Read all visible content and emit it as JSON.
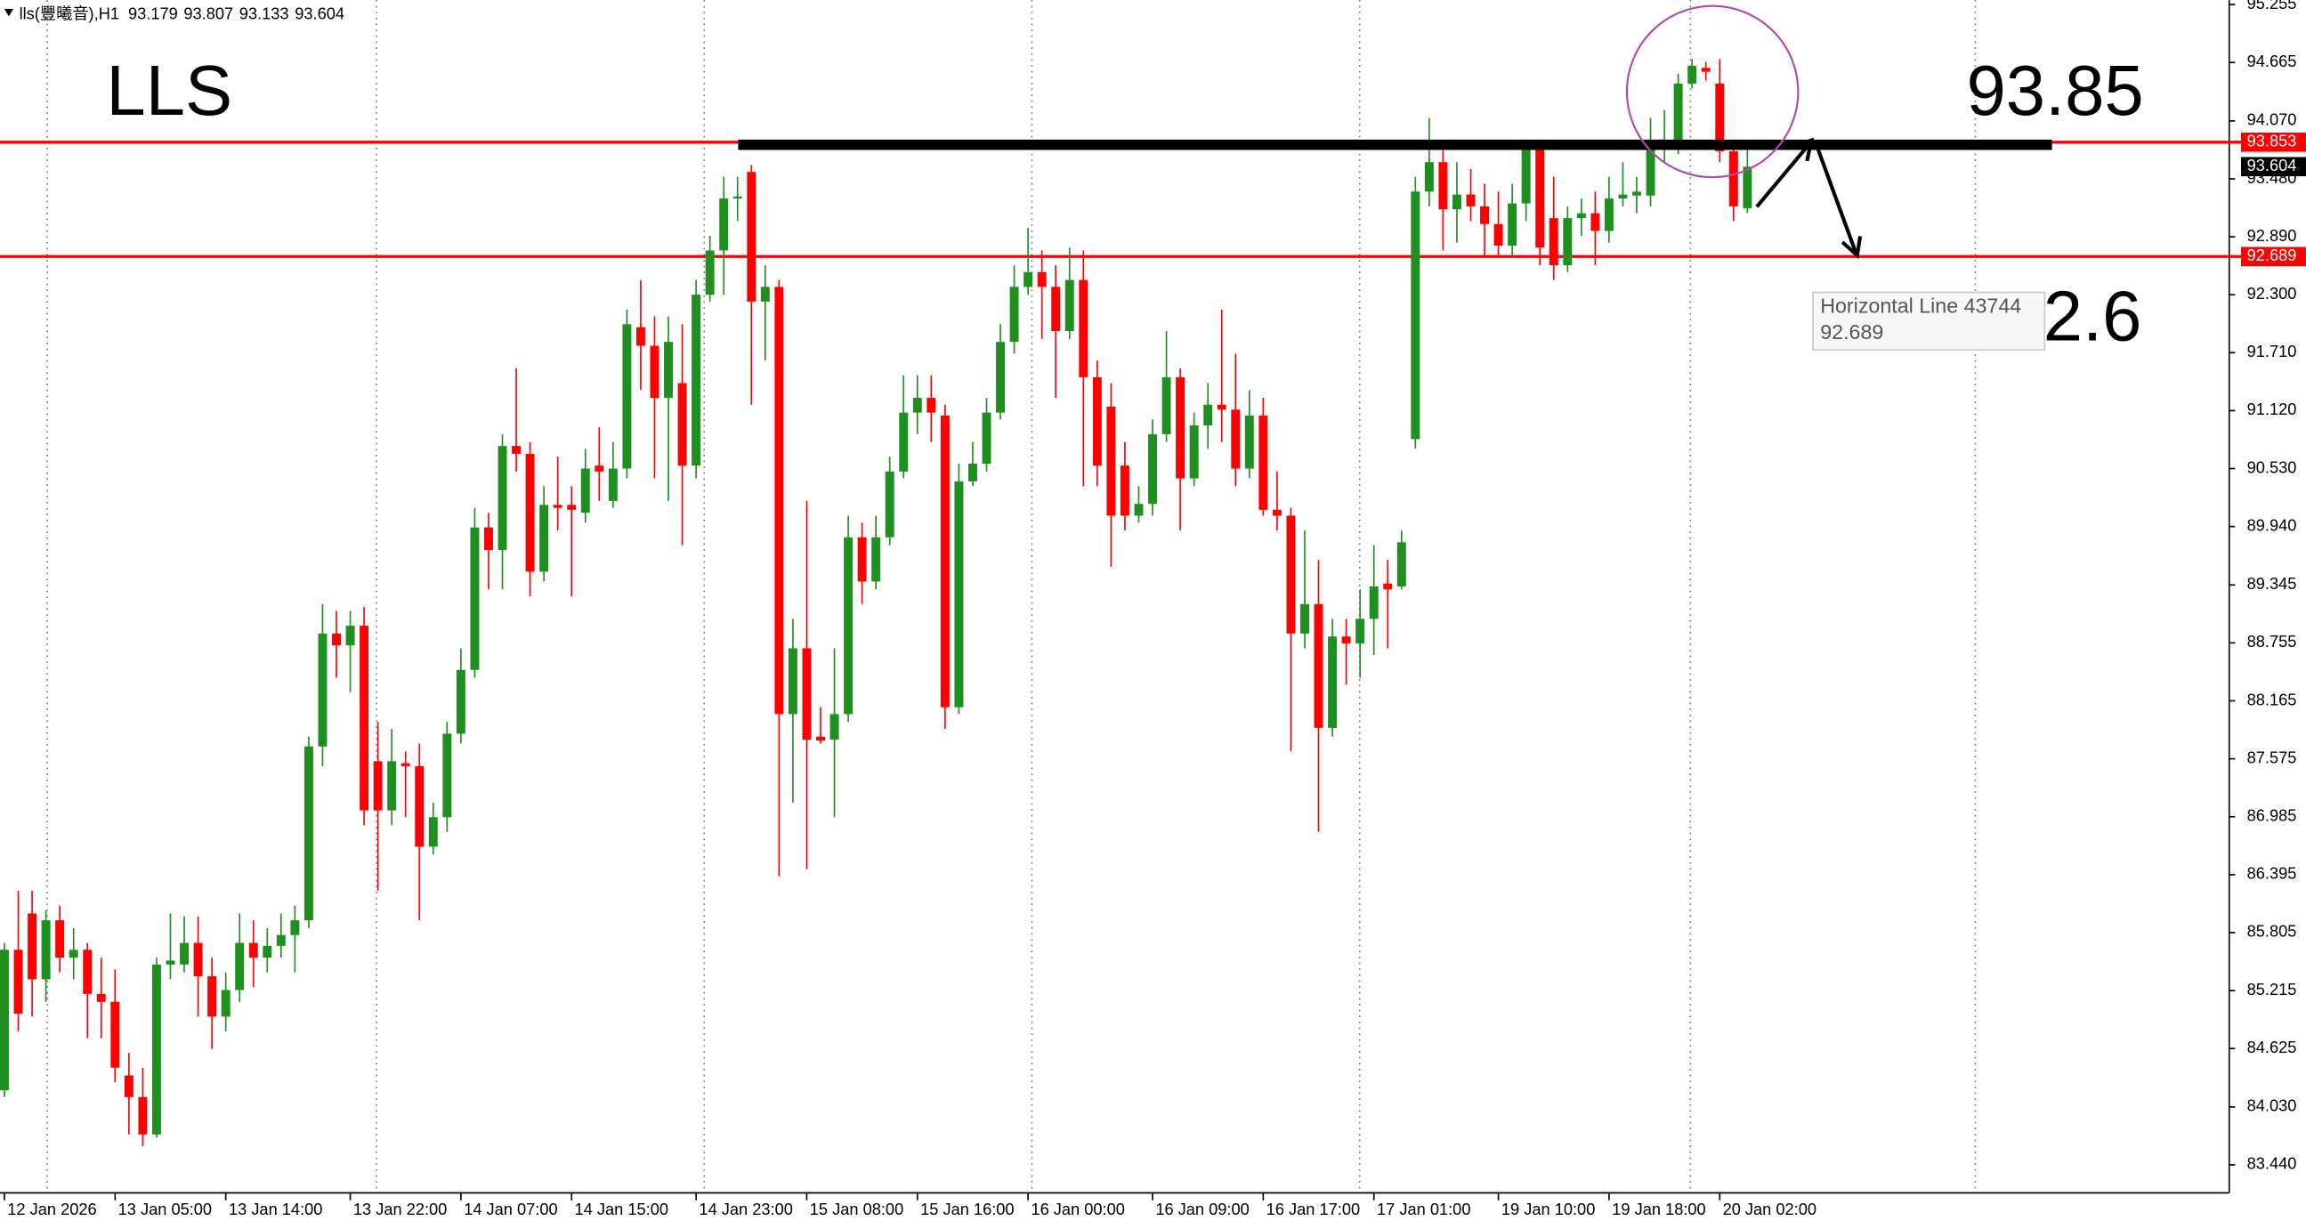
{
  "chart_data": {
    "type": "candlestick",
    "symbol": "lls(豐曦音),H1",
    "annotations": [
      "LLS",
      "93.85",
      "2.6"
    ],
    "tooltip_title": "Horizontal Line 43744",
    "up_color": "#1f8f1f",
    "down_color": "#ff0000",
    "ylim": [
      83.155,
      95.255
    ],
    "yticks": [
      95.255,
      94.665,
      {
        "value": 94.07,
        "label": "94.070"
      },
      {
        "value": 93.48,
        "label": "93.480"
      },
      {
        "value": 92.89,
        "label": "92.890"
      },
      {
        "value": 92.3,
        "label": "92.300"
      },
      {
        "value": 91.71,
        "label": "91.710"
      },
      {
        "value": 91.12,
        "label": "91.120"
      },
      {
        "value": 90.53,
        "label": "90.530"
      },
      {
        "value": 89.94,
        "label": "89.940"
      },
      89.345,
      88.755,
      88.165,
      87.575,
      86.985,
      86.395,
      85.805,
      85.215,
      84.625,
      {
        "value": 84.03,
        "label": "84.030"
      },
      {
        "value": 83.44,
        "label": "83.440"
      }
    ],
    "grid": false,
    "horizontal_lines": [
      {
        "value": 93.853,
        "color": "#ff0000"
      },
      {
        "value": 92.689,
        "color": "#ff0000"
      }
    ],
    "categories": [
      "12 Jan 2026",
      null,
      null,
      null,
      null,
      null,
      null,
      null,
      "13 Jan 05:00",
      null,
      null,
      null,
      null,
      null,
      null,
      null,
      "13 Jan 14:00",
      null,
      null,
      null,
      null,
      null,
      null,
      null,
      null,
      "13 Jan 22:00",
      null,
      null,
      null,
      null,
      null,
      null,
      null,
      "14 Jan 07:00",
      null,
      null,
      null,
      null,
      null,
      null,
      null,
      "14 Jan 15:00",
      null,
      null,
      null,
      null,
      null,
      null,
      null,
      null,
      "14 Jan 23:00",
      null,
      null,
      null,
      null,
      null,
      null,
      null,
      "15 Jan 08:00",
      null,
      null,
      null,
      null,
      null,
      null,
      null,
      "15 Jan 16:00",
      null,
      null,
      null,
      null,
      null,
      null,
      null,
      "16 Jan 00:00",
      null,
      null,
      null,
      null,
      null,
      null,
      null,
      null,
      "16 Jan 09:00",
      null,
      null,
      null,
      null,
      null,
      null,
      null,
      "16 Jan 17:00",
      null,
      null,
      null,
      null,
      null,
      null,
      null,
      "17 Jan 01:00",
      null,
      null,
      null,
      null,
      null,
      null,
      null,
      null,
      "19 Jan 10:00",
      null,
      null,
      null,
      null,
      null,
      null,
      null,
      "19 Jan 18:00",
      null,
      null,
      null,
      null,
      null,
      null,
      null,
      "20 Jan 02:00",
      null,
      null
    ],
    "open": [
      84.2,
      85.63,
      86.0,
      85.33,
      85.93,
      85.55,
      85.63,
      85.18,
      85.1,
      84.35,
      84.13,
      83.75,
      85.48,
      85.48,
      85.7,
      85.36,
      84.95,
      85.22,
      85.7,
      85.55,
      85.67,
      85.78,
      85.93,
      87.7,
      88.85,
      88.73,
      88.93,
      87.55,
      87.05,
      87.53,
      87.5,
      86.68,
      86.98,
      87.83,
      88.48,
      89.93,
      89.7,
      90.76,
      90.68,
      89.48,
      90.16,
      90.16,
      90.08,
      90.56,
      90.2,
      90.53,
      91.97,
      91.78,
      91.25,
      91.4,
      90.56,
      92.3,
      92.75,
      93.28,
      93.55,
      92.23,
      92.38,
      88.03,
      88.7,
      87.8,
      87.77,
      88.03,
      89.83,
      89.38,
      89.83,
      90.5,
      91.1,
      91.25,
      91.07,
      88.1,
      90.4,
      90.58,
      91.1,
      91.82,
      92.38,
      92.53,
      92.38,
      91.93,
      92.45,
      91.46,
      91.16,
      90.56,
      90.05,
      90.17,
      90.88,
      91.46,
      90.43,
      90.97,
      91.18,
      91.13,
      90.53,
      91.07,
      90.11,
      90.05,
      88.85,
      89.15,
      87.89,
      88.82,
      88.75,
      89.0,
      89.36,
      89.33,
      90.83,
      93.35,
      93.65,
      93.17,
      93.32,
      93.2,
      93.02,
      92.8,
      93.23,
      93.8,
      93.08,
      92.6,
      93.08,
      93.13,
      92.95,
      93.28,
      93.31,
      93.31,
      93.85,
      93.85,
      94.45,
      94.61,
      94.45,
      93.76,
      93.179
    ],
    "high": [
      85.7,
      86.23,
      86.23,
      86.03,
      86.08,
      85.85,
      85.7,
      85.55,
      85.43,
      84.58,
      84.43,
      85.55,
      86.0,
      85.97,
      85.97,
      85.55,
      85.4,
      86.0,
      85.93,
      85.85,
      86.0,
      86.08,
      87.8,
      89.15,
      89.08,
      89.08,
      89.12,
      87.95,
      87.88,
      87.65,
      87.73,
      87.13,
      87.95,
      88.7,
      90.13,
      90.08,
      90.88,
      91.55,
      90.8,
      90.35,
      90.65,
      90.35,
      90.73,
      90.95,
      90.8,
      92.15,
      92.45,
      92.08,
      92.08,
      92.0,
      92.45,
      92.9,
      93.5,
      93.5,
      93.62,
      92.6,
      92.45,
      89.0,
      90.2,
      88.1,
      88.7,
      90.05,
      89.98,
      90.05,
      90.65,
      91.48,
      91.48,
      91.48,
      91.18,
      90.58,
      90.8,
      91.25,
      92.0,
      92.6,
      92.98,
      92.75,
      92.6,
      92.78,
      92.75,
      91.63,
      91.4,
      90.8,
      90.35,
      91.03,
      91.93,
      91.55,
      91.1,
      91.4,
      92.15,
      91.7,
      91.33,
      91.25,
      90.5,
      90.13,
      89.9,
      89.6,
      89.0,
      89.0,
      89.3,
      89.75,
      89.6,
      89.9,
      93.5,
      94.1,
      93.88,
      93.65,
      93.58,
      93.43,
      93.35,
      93.43,
      93.88,
      93.88,
      93.5,
      93.2,
      93.28,
      93.35,
      93.5,
      93.65,
      93.5,
      94.1,
      94.18,
      94.55,
      94.7,
      94.67,
      94.7,
      93.88,
      93.807
    ],
    "low": [
      84.13,
      84.8,
      84.95,
      85.1,
      85.4,
      85.33,
      84.73,
      84.73,
      84.28,
      83.75,
      83.63,
      83.72,
      85.33,
      85.4,
      84.95,
      84.62,
      84.8,
      85.1,
      85.25,
      85.4,
      85.55,
      85.4,
      85.85,
      87.5,
      88.4,
      88.25,
      86.9,
      86.23,
      86.9,
      86.98,
      85.93,
      86.6,
      86.83,
      87.73,
      88.4,
      89.3,
      89.3,
      90.5,
      89.23,
      89.38,
      89.9,
      89.23,
      89.98,
      90.2,
      90.13,
      90.43,
      91.33,
      90.43,
      90.2,
      89.75,
      90.43,
      92.23,
      92.3,
      93.05,
      91.18,
      91.63,
      86.38,
      87.13,
      86.45,
      87.73,
      86.98,
      87.95,
      89.15,
      89.3,
      89.75,
      90.43,
      90.88,
      90.8,
      87.88,
      88.03,
      90.35,
      90.5,
      91.03,
      91.7,
      92.3,
      91.85,
      91.25,
      91.85,
      90.35,
      90.35,
      89.53,
      89.9,
      89.98,
      90.05,
      90.8,
      89.9,
      90.35,
      90.73,
      90.8,
      90.35,
      90.43,
      90.05,
      89.9,
      87.65,
      88.7,
      86.83,
      87.8,
      88.33,
      88.4,
      88.63,
      88.7,
      89.3,
      90.73,
      93.2,
      92.75,
      92.83,
      93.05,
      92.68,
      92.68,
      92.68,
      93.05,
      92.6,
      92.45,
      92.53,
      92.9,
      92.6,
      92.83,
      93.2,
      93.13,
      93.2,
      93.65,
      93.73,
      94.4,
      94.48,
      93.65,
      93.05,
      93.133
    ],
    "close": [
      85.63,
      84.98,
      85.33,
      85.93,
      85.55,
      85.63,
      85.18,
      85.1,
      84.43,
      84.13,
      83.75,
      85.48,
      85.52,
      85.7,
      85.36,
      84.95,
      85.22,
      85.7,
      85.55,
      85.67,
      85.78,
      85.93,
      87.7,
      88.85,
      88.73,
      88.93,
      87.05,
      87.05,
      87.55,
      87.5,
      86.68,
      86.98,
      87.83,
      88.48,
      89.93,
      89.7,
      90.76,
      90.68,
      89.48,
      90.16,
      90.13,
      90.11,
      90.53,
      90.5,
      90.53,
      92.0,
      91.78,
      91.25,
      91.82,
      90.56,
      92.3,
      92.75,
      93.28,
      93.3,
      92.23,
      92.38,
      88.03,
      88.7,
      87.77,
      87.76,
      88.03,
      89.83,
      89.38,
      89.83,
      90.5,
      91.1,
      91.25,
      91.1,
      88.1,
      90.4,
      90.58,
      91.1,
      91.82,
      92.38,
      92.53,
      92.38,
      91.93,
      92.45,
      91.46,
      90.56,
      90.05,
      90.05,
      90.17,
      90.88,
      91.46,
      90.43,
      90.97,
      91.18,
      91.13,
      90.53,
      91.07,
      90.11,
      90.05,
      88.85,
      89.15,
      87.89,
      88.82,
      88.75,
      89.0,
      89.33,
      89.3,
      89.78,
      93.35,
      93.65,
      93.17,
      93.32,
      93.2,
      93.02,
      92.8,
      93.23,
      93.8,
      92.78,
      92.6,
      93.08,
      93.13,
      92.95,
      93.28,
      93.32,
      93.35,
      93.85,
      93.88,
      94.45,
      94.63,
      94.57,
      93.76,
      93.2,
      93.604
    ]
  }
}
